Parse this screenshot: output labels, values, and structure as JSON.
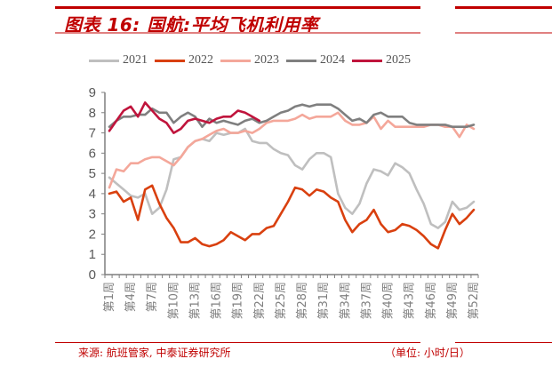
{
  "header": {
    "title": "图表 16:  国航:平均飞机利用率"
  },
  "footer": {
    "source": "来源: 航班管家, 中泰证券研究所",
    "unit": "（单位: 小时/日）"
  },
  "colors": {
    "accent": "#c00000",
    "s2021": "#bfbfbf",
    "s2022": "#d9400f",
    "s2023": "#f4a79a",
    "s2024": "#7f7f7f",
    "s2025": "#c0143c"
  },
  "chart_data": {
    "type": "line",
    "title": "国航:平均飞机利用率",
    "xlabel": "",
    "ylabel": "小时/日",
    "ylim": [
      0,
      9
    ],
    "yticks": [
      0,
      1,
      2,
      3,
      4,
      5,
      6,
      7,
      8,
      9
    ],
    "xtick_labels": [
      "第1周",
      "第4周",
      "第7周",
      "第10周",
      "第13周",
      "第16周",
      "第19周",
      "第22周",
      "第25周",
      "第28周",
      "第31周",
      "第34周",
      "第37周",
      "第40周",
      "第43周",
      "第46周",
      "第49周",
      "第52周"
    ],
    "x": [
      1,
      2,
      3,
      4,
      5,
      6,
      7,
      8,
      9,
      10,
      11,
      12,
      13,
      14,
      15,
      16,
      17,
      18,
      19,
      20,
      21,
      22,
      23,
      24,
      25,
      26,
      27,
      28,
      29,
      30,
      31,
      32,
      33,
      34,
      35,
      36,
      37,
      38,
      39,
      40,
      41,
      42,
      43,
      44,
      45,
      46,
      47,
      48,
      49,
      50,
      51,
      52
    ],
    "legend": [
      "2021",
      "2022",
      "2023",
      "2024",
      "2025"
    ],
    "legend_position": "top",
    "grid": false,
    "series": [
      {
        "name": "2021",
        "values": [
          4.8,
          4.5,
          4.2,
          3.9,
          3.8,
          4.0,
          3.0,
          3.3,
          4.2,
          5.7,
          5.8,
          6.3,
          6.6,
          6.7,
          6.6,
          7.0,
          6.9,
          7.0,
          7.0,
          7.2,
          6.6,
          6.5,
          6.5,
          6.2,
          6.0,
          5.9,
          5.4,
          5.2,
          5.7,
          6.0,
          6.0,
          5.8,
          4.0,
          3.3,
          3.0,
          3.5,
          4.5,
          5.2,
          5.1,
          4.9,
          5.5,
          5.3,
          5.0,
          4.2,
          3.5,
          2.5,
          2.3,
          2.6,
          3.6,
          3.2,
          3.3,
          3.6
        ]
      },
      {
        "name": "2022",
        "values": [
          4.0,
          4.1,
          3.6,
          3.8,
          2.7,
          4.2,
          4.4,
          3.5,
          2.8,
          2.3,
          1.6,
          1.6,
          1.8,
          1.5,
          1.4,
          1.5,
          1.7,
          2.1,
          1.9,
          1.7,
          2.0,
          2.0,
          2.3,
          2.4,
          3.0,
          3.6,
          4.3,
          4.2,
          3.9,
          4.2,
          4.1,
          3.8,
          3.6,
          2.7,
          2.1,
          2.5,
          2.7,
          3.2,
          2.5,
          2.1,
          2.2,
          2.5,
          2.4,
          2.2,
          1.9,
          1.5,
          1.3,
          2.2,
          3.0,
          2.5,
          2.8,
          3.2
        ]
      },
      {
        "name": "2023",
        "values": [
          4.3,
          5.2,
          5.1,
          5.5,
          5.5,
          5.7,
          5.8,
          5.8,
          5.6,
          5.4,
          5.8,
          6.3,
          6.6,
          6.7,
          6.9,
          7.1,
          7.2,
          7.0,
          7.0,
          7.1,
          7.0,
          7.2,
          7.5,
          7.6,
          7.6,
          7.6,
          7.7,
          7.9,
          7.7,
          7.8,
          7.8,
          7.8,
          8.0,
          7.6,
          7.4,
          7.4,
          7.5,
          7.8,
          7.2,
          7.6,
          7.3,
          7.3,
          7.3,
          7.3,
          7.3,
          7.4,
          7.4,
          7.3,
          7.3,
          6.8,
          7.4,
          7.2
        ]
      },
      {
        "name": "2024",
        "values": [
          7.3,
          7.6,
          7.8,
          7.8,
          7.9,
          7.9,
          8.2,
          8.0,
          8.0,
          7.5,
          7.8,
          8.0,
          7.8,
          7.3,
          7.7,
          7.5,
          7.6,
          7.5,
          7.4,
          7.6,
          7.7,
          7.5,
          7.6,
          7.8,
          8.0,
          8.1,
          8.3,
          8.4,
          8.3,
          8.4,
          8.4,
          8.4,
          8.2,
          7.9,
          7.6,
          7.7,
          7.5,
          7.9,
          8.0,
          7.8,
          7.8,
          7.8,
          7.5,
          7.4,
          7.4,
          7.4,
          7.4,
          7.4,
          7.3,
          7.3,
          7.3,
          7.4
        ]
      },
      {
        "name": "2025",
        "values": [
          7.1,
          7.6,
          8.1,
          8.3,
          7.8,
          8.5,
          8.1,
          7.7,
          7.5,
          7.0,
          7.2,
          7.6,
          7.7,
          7.6,
          7.5,
          7.7,
          7.8,
          7.8,
          8.1,
          8.0,
          7.8,
          7.6,
          null,
          null,
          null,
          null,
          null,
          null,
          null,
          null,
          null,
          null,
          null,
          null,
          null,
          null,
          null,
          null,
          null,
          null,
          null,
          null,
          null,
          null,
          null,
          null,
          null,
          null,
          null,
          null,
          null,
          null
        ]
      }
    ]
  }
}
